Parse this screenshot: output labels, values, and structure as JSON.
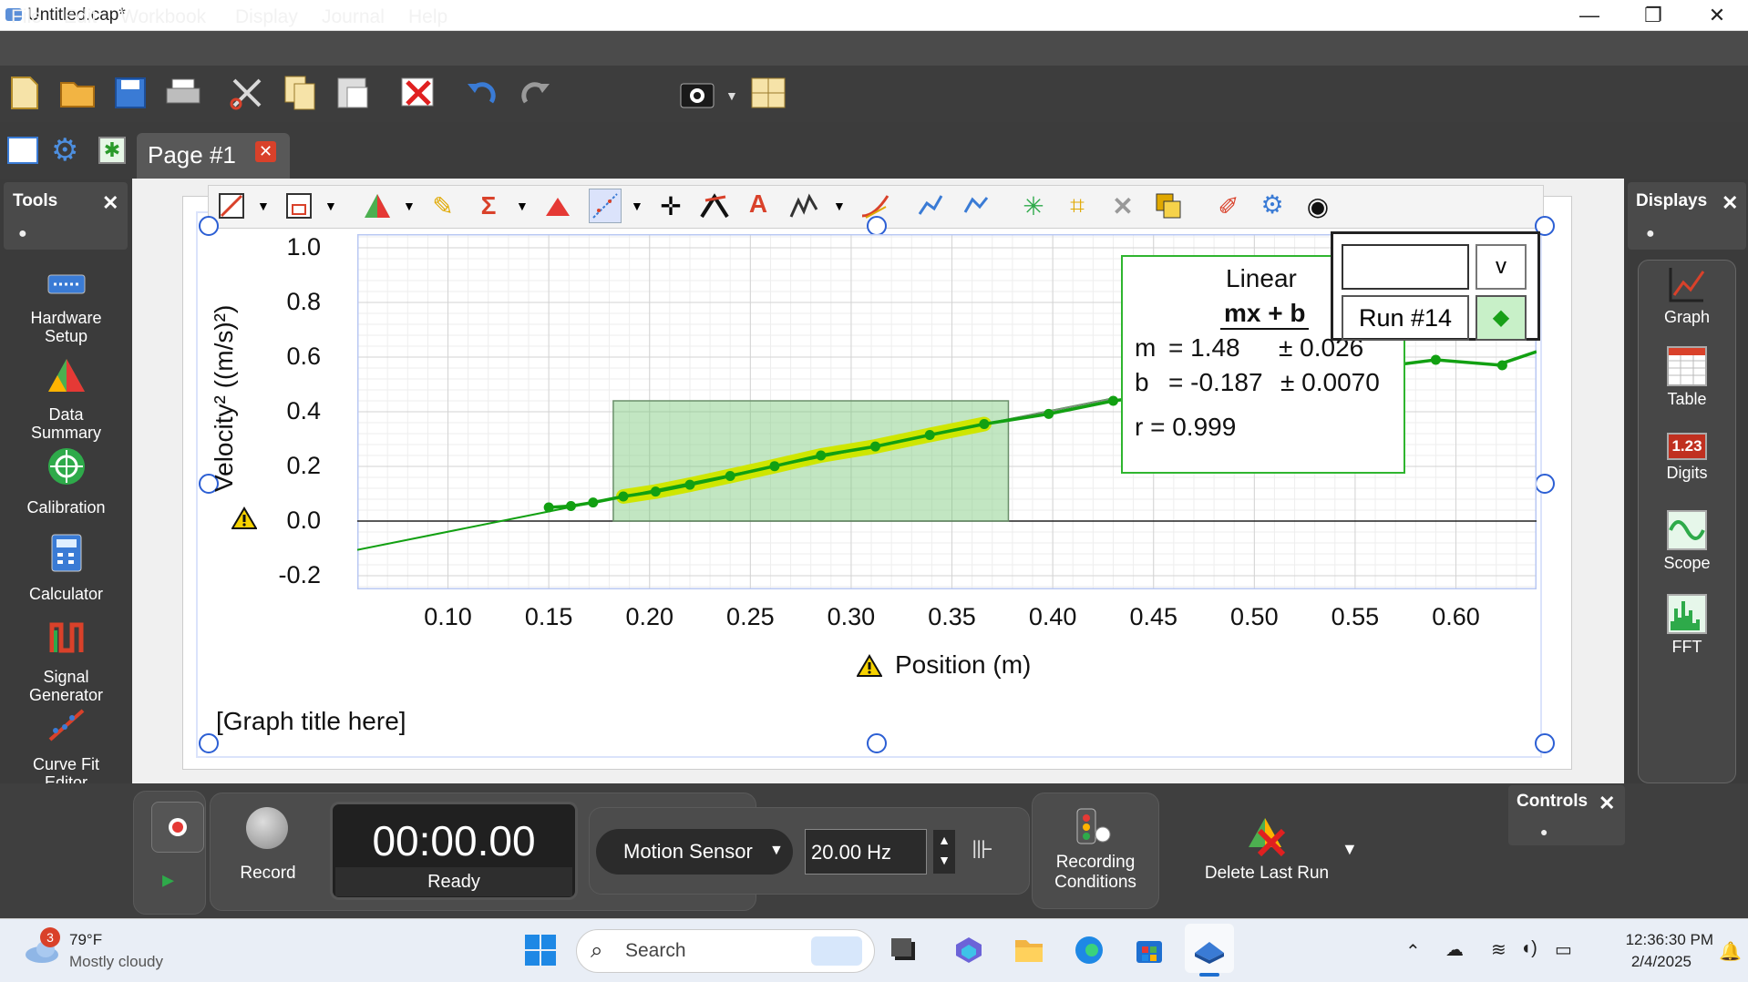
{
  "window": {
    "title": "Untitled.cap*",
    "minimize": "—",
    "restore": "❐",
    "close": "✕"
  },
  "menu": [
    "File",
    "Edit",
    "Workbook",
    "Display",
    "Journal",
    "Help"
  ],
  "page_tab": {
    "label": "Page #1",
    "close": "✕"
  },
  "tools_panel": {
    "title": "Tools",
    "close": "✕",
    "items": [
      "Hardware\nSetup",
      "Data\nSummary",
      "Calibration",
      "Calculator",
      "Signal\nGenerator",
      "Curve Fit\nEditor"
    ]
  },
  "displays_panel": {
    "title": "Displays",
    "close": "✕",
    "items": [
      "Graph",
      "Table",
      "Digits",
      "Scope",
      "FFT"
    ],
    "digits_icon_text": "1.23"
  },
  "graph": {
    "y_axis_label": "Velocity² ((m/s)²)",
    "x_axis_label": "Position (m)",
    "title": "[Graph title here]"
  },
  "curve_fit": {
    "name": "Linear",
    "equation": "mx + b",
    "m_label": "m",
    "m_value": "= 1.48",
    "m_unc": "± 0.026",
    "b_label": "b",
    "b_value": "= -0.187",
    "b_unc": "± 0.0070",
    "r": "r = 0.999"
  },
  "legend": {
    "v_button": "v",
    "run": "Run #14",
    "marker": "◆"
  },
  "controls": {
    "title": "Controls",
    "close": "✕",
    "record": "Record",
    "timer": "00:00.00",
    "status": "Ready",
    "sensor": "Motion Sensor",
    "rate": "20.00 Hz",
    "recording_conditions": "Recording\nConditions",
    "delete_last_run": "Delete Last Run"
  },
  "taskbar": {
    "weather_temp": "79°F",
    "weather_desc": "Mostly cloudy",
    "weather_badge": "3",
    "search": "Search",
    "time": "12:36:30 PM",
    "date": "2/4/2025"
  },
  "chart_data": {
    "type": "scatter",
    "xlabel": "Position (m)",
    "ylabel": "Velocity² ((m/s)²)",
    "title": "[Graph title here]",
    "xlim": [
      0.055,
      0.64
    ],
    "ylim": [
      -0.25,
      1.05
    ],
    "x_ticks": [
      0.1,
      0.15,
      0.2,
      0.25,
      0.3,
      0.35,
      0.4,
      0.45,
      0.5,
      0.55,
      0.6
    ],
    "y_ticks": [
      1.0,
      0.8,
      0.6,
      0.4,
      0.2,
      0.0,
      -0.2
    ],
    "grid": true,
    "series": [
      {
        "name": "Run #14",
        "color": "#12a012",
        "x": [
          0.15,
          0.161,
          0.172,
          0.187,
          0.203,
          0.22,
          0.24,
          0.262,
          0.285,
          0.312,
          0.339,
          0.366,
          0.398,
          0.43,
          0.59,
          0.623
        ],
        "y": [
          0.05,
          0.055,
          0.068,
          0.09,
          0.108,
          0.133,
          0.165,
          0.201,
          0.24,
          0.273,
          0.315,
          0.355,
          0.392,
          0.44,
          0.59,
          0.57
        ]
      }
    ],
    "fit": {
      "type": "linear",
      "m": 1.48,
      "b": -0.187,
      "x_range": [
        0.055,
        0.43
      ]
    },
    "selection": {
      "x": [
        0.182,
        0.378
      ],
      "y": [
        0.0,
        0.44
      ]
    },
    "accent": "#cfe600"
  }
}
